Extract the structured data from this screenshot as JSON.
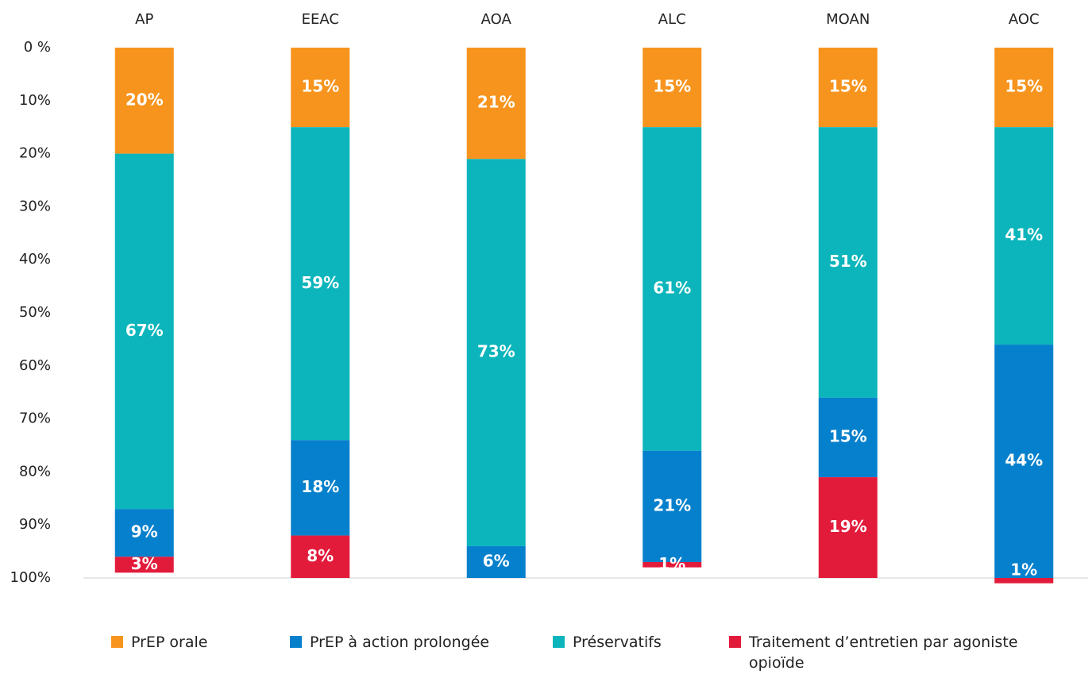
{
  "chart_data": {
    "type": "stacked_bar",
    "categories": [
      "AP",
      "EEAC",
      "AOA",
      "ALC",
      "MOAN",
      "AOC"
    ],
    "series": [
      {
        "name": "PrEP orale",
        "color": "#f7941d",
        "values": [
          20,
          15,
          21,
          15,
          15,
          15
        ]
      },
      {
        "name": "Préservatifs",
        "color": "#0bb5bb",
        "values": [
          67,
          59,
          73,
          61,
          51,
          41
        ]
      },
      {
        "name": "PrEP à action prolongée",
        "color": "#0580cc",
        "values": [
          9,
          18,
          6,
          21,
          15,
          44
        ]
      },
      {
        "name": "Traitement d’entretien par agoniste opioïde",
        "color": "#e31b3b",
        "values": [
          3,
          8,
          null,
          1,
          19,
          1
        ]
      }
    ],
    "value_labels": [
      [
        "20%",
        "15%",
        "21%",
        "15%",
        "15%",
        "15%"
      ],
      [
        "67%",
        "59%",
        "73%",
        "61%",
        "51%",
        "41%"
      ],
      [
        "9%",
        "18%",
        "6%",
        "21%",
        "15%",
        "44%"
      ],
      [
        "3%",
        "8%",
        null,
        "1%",
        "19%",
        "1%"
      ]
    ],
    "legend_order": [
      0,
      2,
      1,
      3
    ],
    "ylim": [
      0,
      100
    ],
    "y_inverted": true,
    "yticks": [
      {
        "value": 0,
        "label": "0 %"
      },
      {
        "value": 10,
        "label": "10%"
      },
      {
        "value": 20,
        "label": "20%"
      },
      {
        "value": 30,
        "label": "30%"
      },
      {
        "value": 40,
        "label": "40%"
      },
      {
        "value": 50,
        "label": "50%"
      },
      {
        "value": 60,
        "label": "60%"
      },
      {
        "value": 70,
        "label": "70%"
      },
      {
        "value": 80,
        "label": "80%"
      },
      {
        "value": 90,
        "label": "90%"
      },
      {
        "value": 100,
        "label": "100%"
      }
    ]
  }
}
